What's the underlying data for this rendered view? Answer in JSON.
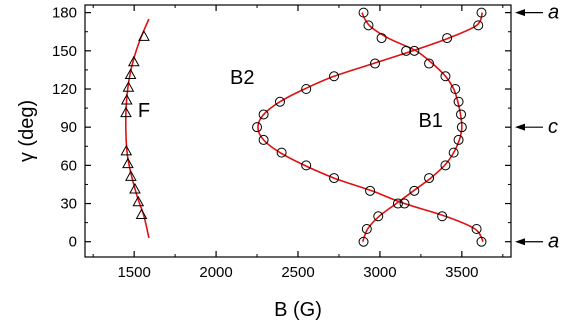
{
  "chart_data": {
    "type": "scatter",
    "title": "",
    "xlabel": "B (G)",
    "ylabel": "γ (deg)",
    "xlim": [
      1200,
      3800
    ],
    "ylim": [
      -12,
      186
    ],
    "xticks": [
      1500,
      2000,
      2500,
      3000,
      3500
    ],
    "yticks": [
      0,
      30,
      60,
      90,
      120,
      150,
      180
    ],
    "fit_color": "#e01010",
    "marker_color": "#000000",
    "curve_labels": [
      {
        "text": "F",
        "x": 1560,
        "y": 98
      },
      {
        "text": "B2",
        "x": 2160,
        "y": 124
      },
      {
        "text": "B1",
        "x": 3310,
        "y": 90
      }
    ],
    "orientation_markers": [
      {
        "label": "a",
        "y": 180
      },
      {
        "label": "c",
        "y": 90
      },
      {
        "label": "a",
        "y": 0
      }
    ],
    "series": [
      {
        "marker": "triangle",
        "points": [
          [
            1545,
            21
          ],
          [
            1525,
            31
          ],
          [
            1505,
            41
          ],
          [
            1480,
            51
          ],
          [
            1462,
            61
          ],
          [
            1452,
            71
          ],
          [
            1450,
            101
          ],
          [
            1455,
            111
          ],
          [
            1465,
            121
          ],
          [
            1478,
            131
          ],
          [
            1498,
            141
          ],
          [
            1560,
            161
          ]
        ],
        "fit": [
          [
            1590,
            3
          ],
          [
            1560,
            20
          ],
          [
            1520,
            35
          ],
          [
            1478,
            55
          ],
          [
            1457,
            70
          ],
          [
            1449,
            90
          ],
          [
            1453,
            110
          ],
          [
            1470,
            128
          ],
          [
            1500,
            145
          ],
          [
            1540,
            160
          ],
          [
            1590,
            175
          ]
        ]
      },
      {
        "marker": "circle",
        "points": [
          [
            2900,
            0
          ],
          [
            2920,
            10
          ],
          [
            2990,
            20
          ],
          [
            3110,
            30
          ],
          [
            3210,
            40
          ],
          [
            3300,
            50
          ],
          [
            3400,
            60
          ],
          [
            3450,
            70
          ],
          [
            3480,
            80
          ],
          [
            3500,
            90
          ],
          [
            3495,
            100
          ],
          [
            3480,
            110
          ],
          [
            3460,
            120
          ],
          [
            3400,
            130
          ],
          [
            3300,
            140
          ],
          [
            3210,
            150
          ],
          [
            3010,
            160
          ],
          [
            2930,
            170
          ],
          [
            2900,
            180
          ]
        ],
        "fit": [
          [
            2895,
            0
          ],
          [
            2925,
            10
          ],
          [
            2995,
            20
          ],
          [
            3100,
            30
          ],
          [
            3205,
            40
          ],
          [
            3310,
            50
          ],
          [
            3395,
            60
          ],
          [
            3450,
            70
          ],
          [
            3485,
            80
          ],
          [
            3500,
            90
          ],
          [
            3492,
            100
          ],
          [
            3475,
            110
          ],
          [
            3450,
            120
          ],
          [
            3400,
            130
          ],
          [
            3320,
            140
          ],
          [
            3220,
            150
          ],
          [
            3050,
            160
          ],
          [
            2935,
            170
          ],
          [
            2890,
            180
          ]
        ]
      },
      {
        "marker": "circle",
        "points": [
          [
            3620,
            0
          ],
          [
            3590,
            10
          ],
          [
            3380,
            20
          ],
          [
            3150,
            30
          ],
          [
            2940,
            40
          ],
          [
            2720,
            50
          ],
          [
            2550,
            60
          ],
          [
            2400,
            70
          ],
          [
            2290,
            80
          ],
          [
            2250,
            90
          ],
          [
            2290,
            100
          ],
          [
            2390,
            110
          ],
          [
            2550,
            120
          ],
          [
            2720,
            130
          ],
          [
            2970,
            140
          ],
          [
            3160,
            150
          ],
          [
            3410,
            160
          ],
          [
            3600,
            170
          ],
          [
            3620,
            180
          ]
        ],
        "fit": [
          [
            3630,
            0
          ],
          [
            3580,
            10
          ],
          [
            3400,
            20
          ],
          [
            3150,
            30
          ],
          [
            2950,
            40
          ],
          [
            2720,
            50
          ],
          [
            2540,
            60
          ],
          [
            2390,
            70
          ],
          [
            2290,
            80
          ],
          [
            2255,
            90
          ],
          [
            2290,
            100
          ],
          [
            2390,
            110
          ],
          [
            2540,
            120
          ],
          [
            2720,
            130
          ],
          [
            2960,
            140
          ],
          [
            3200,
            150
          ],
          [
            3420,
            160
          ],
          [
            3590,
            170
          ],
          [
            3625,
            180
          ]
        ]
      }
    ]
  }
}
